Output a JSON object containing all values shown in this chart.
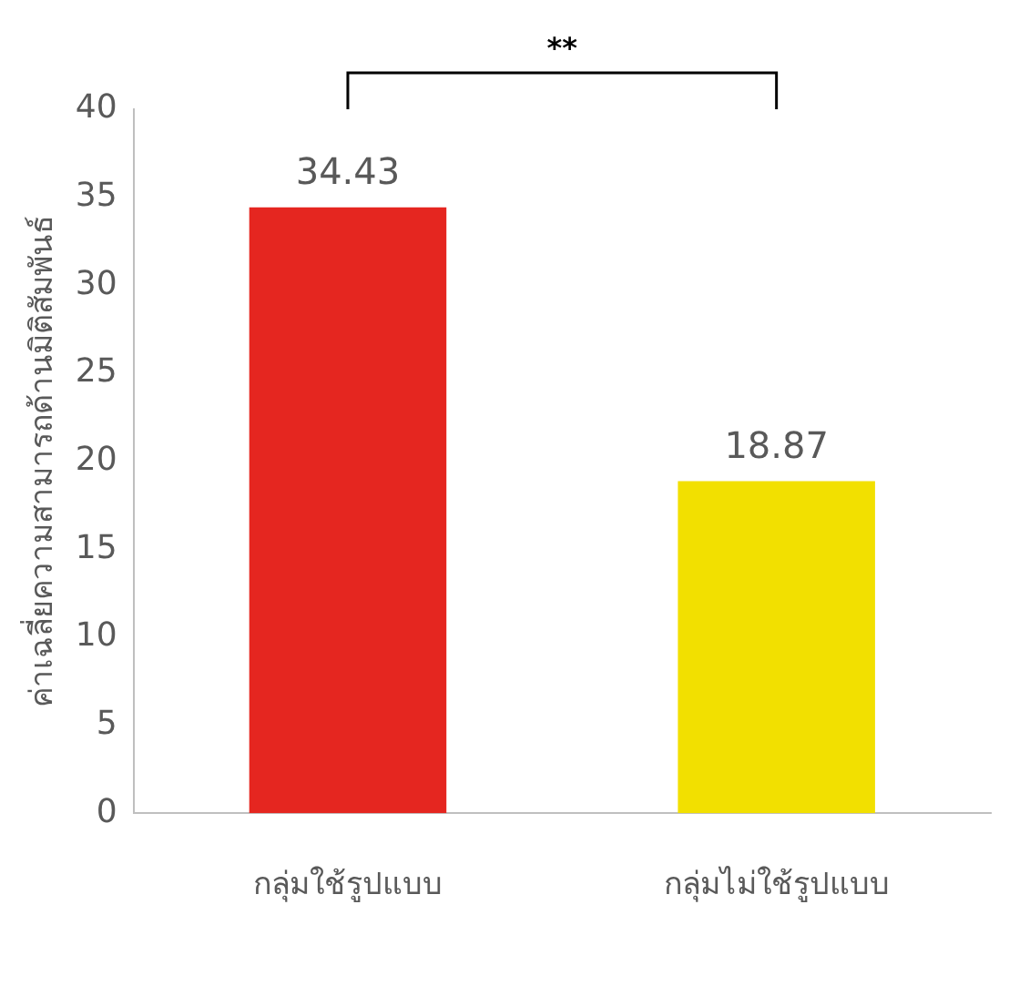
{
  "chart_data": {
    "type": "bar",
    "ylabel": "ค่าเฉลี่ยความสามารถด้านมิติสัมพันธ์",
    "categories": [
      "กลุ่มใช้รูปแบบ",
      "กลุ่มไม่ใช้รูปแบบ"
    ],
    "values": [
      34.43,
      18.87
    ],
    "colors": [
      "#e52620",
      "#f2e000"
    ],
    "ylim": [
      0,
      40
    ],
    "yticks": [
      0,
      5,
      10,
      15,
      20,
      25,
      30,
      35,
      40
    ],
    "grid": false,
    "legend": false,
    "data_labels": true,
    "annotations": [
      "**"
    ]
  }
}
